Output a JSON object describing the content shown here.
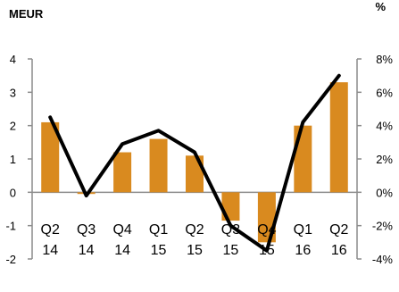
{
  "chart_data": {
    "type": "bar+line",
    "left_unit": "MEUR",
    "right_unit": "%",
    "categories": [
      {
        "q": "Q2",
        "y": "14"
      },
      {
        "q": "Q3",
        "y": "14"
      },
      {
        "q": "Q4",
        "y": "14"
      },
      {
        "q": "Q1",
        "y": "15"
      },
      {
        "q": "Q2",
        "y": "15"
      },
      {
        "q": "Q3",
        "y": "15"
      },
      {
        "q": "Q4",
        "y": "15"
      },
      {
        "q": "Q1",
        "y": "16"
      },
      {
        "q": "Q2",
        "y": "16"
      }
    ],
    "bars": {
      "axis": "left",
      "color": "#d98a1f",
      "values": [
        2.1,
        -0.05,
        1.2,
        1.6,
        1.1,
        -0.85,
        -1.5,
        2.0,
        3.3
      ]
    },
    "line": {
      "axis": "right",
      "color": "#000000",
      "values": [
        4.5,
        -0.2,
        2.9,
        3.7,
        2.4,
        -2.0,
        -3.5,
        4.2,
        7.0
      ]
    },
    "left_axis": {
      "min": -2,
      "max": 4,
      "ticks": [
        "-2",
        "-1",
        "0",
        "1",
        "2",
        "3",
        "4"
      ]
    },
    "right_axis": {
      "min": -4,
      "max": 8,
      "ticks": [
        "-4%",
        "-2%",
        "0%",
        "2%",
        "4%",
        "6%",
        "8%"
      ]
    }
  }
}
